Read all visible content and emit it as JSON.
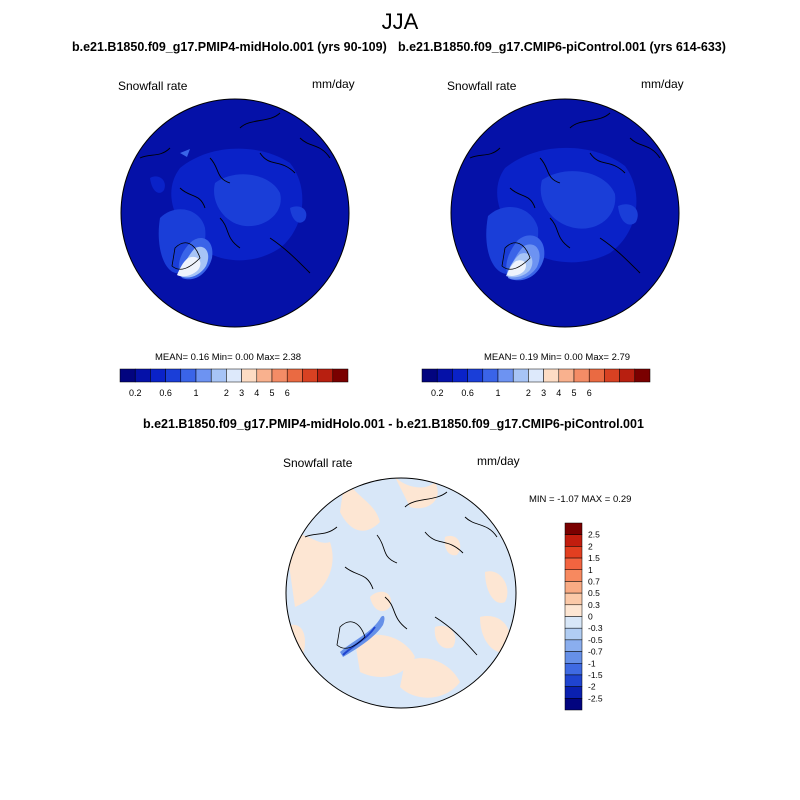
{
  "season": "JJA",
  "panel_left": {
    "case_title": "b.e21.B1850.f09_g17.PMIP4-midHolo.001 (yrs 90-109)",
    "variable": "Snowfall rate",
    "units": "mm/day",
    "stats": {
      "mean_label": "MEAN=",
      "mean": "0.16",
      "min_label": "Min=",
      "min": "0.00",
      "max_label": "Max=",
      "max": "2.38"
    }
  },
  "panel_right": {
    "case_title": "b.e21.B1850.f09_g17.CMIP6-piControl.001 (yrs 614-633)",
    "variable": "Snowfall rate",
    "units": "mm/day",
    "stats": {
      "mean_label": "MEAN=",
      "mean": "0.19",
      "min_label": "Min=",
      "min": "0.00",
      "max_label": "Max=",
      "max": "2.79"
    }
  },
  "top_colorbar": {
    "colors": [
      "#02047f",
      "#0511a8",
      "#0a22c8",
      "#1a3ed8",
      "#3a64e8",
      "#6d93f2",
      "#a7c4f6",
      "#dde9fb",
      "#fddcc4",
      "#f9b18e",
      "#f48c66",
      "#ea6a42",
      "#d84122",
      "#b81f10",
      "#7a0000"
    ],
    "tick_labels": [
      "0.2",
      "0.6",
      "1",
      "2",
      "3",
      "4",
      "5",
      "6"
    ]
  },
  "diff_panel": {
    "title": "b.e21.B1850.f09_g17.PMIP4-midHolo.001 - b.e21.B1850.f09_g17.CMIP6-piControl.001",
    "variable": "Snowfall rate",
    "units": "mm/day",
    "stats": {
      "min_label": "MIN =",
      "min": "-1.07",
      "max_label": "MAX =",
      "max": "0.29"
    },
    "colorbar": {
      "colors_top_to_bottom": [
        "#7a0000",
        "#c21d0e",
        "#e23f20",
        "#f36440",
        "#f7895f",
        "#f9ab84",
        "#fbc9a8",
        "#fde6d3",
        "#d8e7f8",
        "#b1cdf3",
        "#8aaeee",
        "#6690e8",
        "#3f6ae2",
        "#1f44d0",
        "#0a20b0",
        "#02047f"
      ],
      "tick_labels": [
        "2.5",
        "2",
        "1.5",
        "1",
        "0.7",
        "0.5",
        "0.3",
        "0",
        "-0.3",
        "-0.5",
        "-0.7",
        "-1",
        "-1.5",
        "-2",
        "-2.5"
      ]
    }
  }
}
